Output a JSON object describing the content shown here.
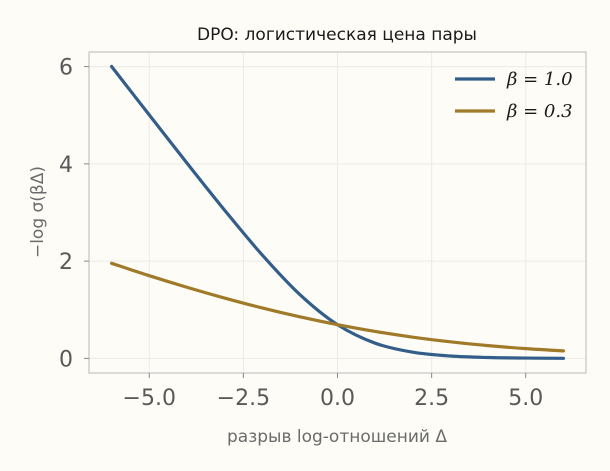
{
  "chart_data": {
    "type": "line",
    "title": "DPO: логистическая цена пары",
    "xlabel": "разрыв log-отношений Δ",
    "ylabel": "−log σ(βΔ)",
    "xlim": [
      -6.6,
      6.6
    ],
    "ylim": [
      -0.3,
      6.3
    ],
    "xticks": [
      -5.0,
      -2.5,
      0.0,
      2.5,
      5.0
    ],
    "xtick_labels": [
      "−5.0",
      "−2.5",
      "0.0",
      "2.5",
      "5.0"
    ],
    "yticks": [
      0,
      2,
      4,
      6
    ],
    "ytick_labels": [
      "0",
      "2",
      "4",
      "6"
    ],
    "grid": true,
    "legend_position": "top-right",
    "x": [
      -6.0,
      -5.0,
      -4.0,
      -3.0,
      -2.0,
      -1.0,
      0.0,
      1.0,
      2.0,
      3.0,
      4.0,
      5.0,
      6.0
    ],
    "series": [
      {
        "name": "β = 1.0",
        "color": "#335e8a",
        "values": [
          6.002,
          5.007,
          4.018,
          3.049,
          2.127,
          1.313,
          0.693,
          0.313,
          0.127,
          0.049,
          0.018,
          0.007,
          0.002
        ]
      },
      {
        "name": "β = 0.3",
        "color": "#a07a28",
        "values": [
          1.955,
          1.701,
          1.463,
          1.241,
          1.037,
          0.854,
          0.693,
          0.554,
          0.437,
          0.341,
          0.263,
          0.201,
          0.155
        ]
      }
    ]
  }
}
